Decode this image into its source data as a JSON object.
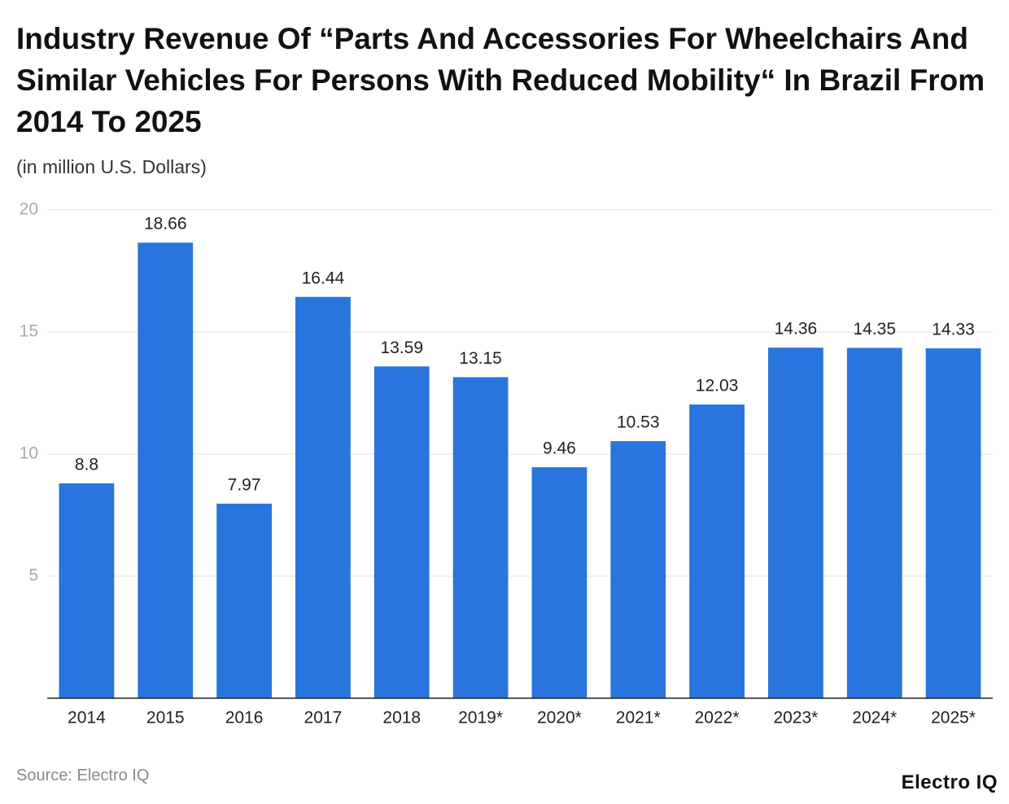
{
  "chart_data": {
    "type": "bar",
    "title": "Industry Revenue Of “Parts And Accessories For Wheelchairs And Similar Vehicles For Persons With Reduced Mobility“ In Brazil From 2014 To 2025",
    "subtitle": "(in million U.S. Dollars)",
    "categories": [
      "2014",
      "2015",
      "2016",
      "2017",
      "2018",
      "2019*",
      "2020*",
      "2021*",
      "2022*",
      "2023*",
      "2024*",
      "2025*"
    ],
    "values": [
      8.8,
      18.66,
      7.97,
      16.44,
      13.59,
      13.15,
      9.46,
      10.53,
      12.03,
      14.36,
      14.35,
      14.33
    ],
    "color": "#2a75dd",
    "ylim": [
      0,
      20
    ],
    "yticks": [
      5,
      10,
      15,
      20
    ],
    "grid": true,
    "source": "Source: Electro IQ",
    "brand": "Electro IQ"
  }
}
